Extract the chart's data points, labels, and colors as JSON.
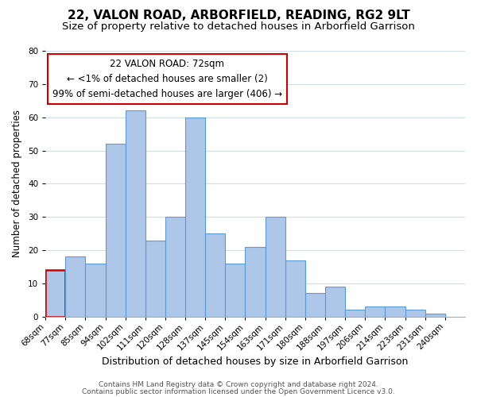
{
  "title": "22, VALON ROAD, ARBORFIELD, READING, RG2 9LT",
  "subtitle": "Size of property relative to detached houses in Arborfield Garrison",
  "xlabel": "Distribution of detached houses by size in Arborfield Garrison",
  "ylabel": "Number of detached properties",
  "bar_color": "#aec6e8",
  "bar_edge_color": "#5b9bd5",
  "highlight_bar_edge_color": "#cc0000",
  "footer1": "Contains HM Land Registry data © Crown copyright and database right 2024.",
  "footer2": "Contains public sector information licensed under the Open Government Licence v3.0.",
  "annotation_title": "22 VALON ROAD: 72sqm",
  "annotation_line1": "← <1% of detached houses are smaller (2)",
  "annotation_line2": "99% of semi-detached houses are larger (406) →",
  "bin_labels": [
    "68sqm",
    "77sqm",
    "85sqm",
    "94sqm",
    "102sqm",
    "111sqm",
    "120sqm",
    "128sqm",
    "137sqm",
    "145sqm",
    "154sqm",
    "163sqm",
    "171sqm",
    "180sqm",
    "188sqm",
    "197sqm",
    "206sqm",
    "214sqm",
    "223sqm",
    "231sqm",
    "240sqm"
  ],
  "bar_heights": [
    14,
    18,
    16,
    52,
    62,
    23,
    30,
    60,
    25,
    16,
    21,
    30,
    17,
    7,
    9,
    2,
    3,
    3,
    2,
    1
  ],
  "highlight_bin_index": 0,
  "ylim": [
    0,
    80
  ],
  "yticks": [
    0,
    10,
    20,
    30,
    40,
    50,
    60,
    70,
    80
  ],
  "background_color": "#ffffff",
  "grid_color": "#d0dce8",
  "title_fontsize": 11,
  "subtitle_fontsize": 9.5,
  "xlabel_fontsize": 9,
  "ylabel_fontsize": 8.5,
  "tick_fontsize": 7.5,
  "annotation_fontsize": 8.5,
  "footer_fontsize": 6.5
}
